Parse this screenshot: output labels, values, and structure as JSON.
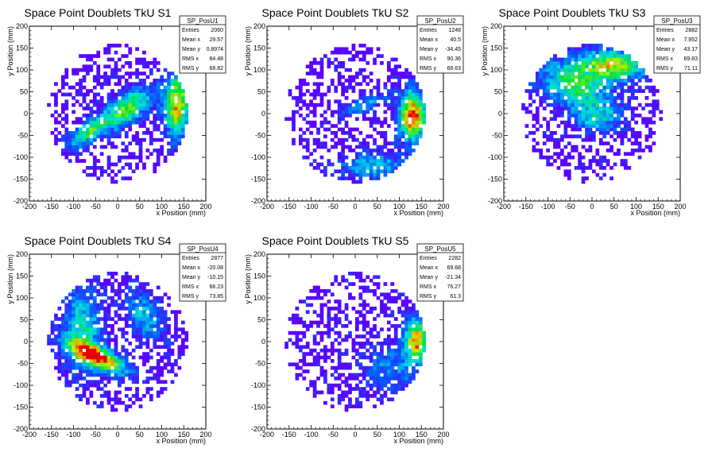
{
  "chart_data": [
    {
      "type": "heatmap",
      "title": "Space Point Doublets TkU S1",
      "xlabel": "x Position (mm)",
      "ylabel": "y Position (mm)",
      "xlim": [
        -200,
        200
      ],
      "ylim": [
        -200,
        200
      ],
      "xticks": [
        "-200",
        "-150",
        "-100",
        "-50",
        "0",
        "50",
        "100",
        "150",
        "200"
      ],
      "yticks": [
        "200",
        "150",
        "100",
        "50",
        "0",
        "-50",
        "-100",
        "-150",
        "-200"
      ],
      "stats": {
        "name": "SP_PosU1",
        "rows": [
          [
            "Entries",
            "2060"
          ],
          [
            "Mean x",
            "29.57"
          ],
          [
            "Mean y",
            "0.8974"
          ],
          [
            "RMS x",
            "84.48"
          ],
          [
            "RMS y",
            "68.82"
          ]
        ]
      },
      "hotspots": [
        {
          "x": 20,
          "y": 10,
          "sx": 50,
          "sy": 22,
          "angle": 35,
          "amp": 3.0
        },
        {
          "x": 135,
          "y": 20,
          "sx": 20,
          "sy": 50,
          "angle": 0,
          "amp": 4.0
        },
        {
          "x": -70,
          "y": -45,
          "sx": 35,
          "sy": 15,
          "angle": 35,
          "amp": 2.5
        }
      ]
    },
    {
      "type": "heatmap",
      "title": "Space Point Doublets TkU S2",
      "xlabel": "x Position (mm)",
      "ylabel": "y Position (mm)",
      "xlim": [
        -200,
        200
      ],
      "ylim": [
        -200,
        200
      ],
      "xticks": [
        "-200",
        "-150",
        "-100",
        "-50",
        "0",
        "50",
        "100",
        "150",
        "200"
      ],
      "yticks": [
        "200",
        "150",
        "100",
        "50",
        "0",
        "-50",
        "-100",
        "-150",
        "-200"
      ],
      "stats": {
        "name": "SP_PosU2",
        "rows": [
          [
            "Entries",
            "1248"
          ],
          [
            "Mean x",
            "40.5"
          ],
          [
            "Mean y",
            "-34.45"
          ],
          [
            "RMS x",
            "90.36"
          ],
          [
            "RMS y",
            "68.63"
          ]
        ]
      },
      "hotspots": [
        {
          "x": 130,
          "y": -5,
          "sx": 22,
          "sy": 40,
          "angle": 0,
          "amp": 4.5
        },
        {
          "x": 40,
          "y": -120,
          "sx": 50,
          "sy": 20,
          "angle": 0,
          "amp": 2.0
        },
        {
          "x": 20,
          "y": 20,
          "sx": 40,
          "sy": 12,
          "angle": 25,
          "amp": 1.5
        }
      ]
    },
    {
      "type": "heatmap",
      "title": "Space Point Doublets TkU S3",
      "xlabel": "x Position (mm)",
      "ylabel": "y Position (mm)",
      "xlim": [
        -200,
        200
      ],
      "ylim": [
        -200,
        200
      ],
      "xticks": [
        "-200",
        "-150",
        "-100",
        "-50",
        "0",
        "50",
        "100",
        "150",
        "200"
      ],
      "yticks": [
        "200",
        "150",
        "100",
        "50",
        "0",
        "-50",
        "-100",
        "-150",
        "-200"
      ],
      "stats": {
        "name": "SP_PosU3",
        "rows": [
          [
            "Entries",
            "2882"
          ],
          [
            "Mean x",
            "7.952"
          ],
          [
            "Mean y",
            "43.17"
          ],
          [
            "RMS x",
            "69.83"
          ],
          [
            "RMS y",
            "71.11"
          ]
        ]
      },
      "hotspots": [
        {
          "x": 40,
          "y": 110,
          "sx": 60,
          "sy": 25,
          "angle": 0,
          "amp": 3.5
        },
        {
          "x": -40,
          "y": 60,
          "sx": 60,
          "sy": 30,
          "angle": -20,
          "amp": 2.5
        },
        {
          "x": 10,
          "y": -10,
          "sx": 40,
          "sy": 25,
          "angle": 0,
          "amp": 1.8
        }
      ]
    },
    {
      "type": "heatmap",
      "title": "Space Point Doublets TkU S4",
      "xlabel": "x Position (mm)",
      "ylabel": "y Position (mm)",
      "xlim": [
        -200,
        200
      ],
      "ylim": [
        -200,
        200
      ],
      "xticks": [
        "-200",
        "-150",
        "-100",
        "-50",
        "0",
        "50",
        "100",
        "150",
        "200"
      ],
      "yticks": [
        "200",
        "150",
        "100",
        "50",
        "0",
        "-50",
        "-100",
        "-150",
        "-200"
      ],
      "stats": {
        "name": "SP_PosU4",
        "rows": [
          [
            "Entries",
            "2877"
          ],
          [
            "Mean x",
            "-20.08"
          ],
          [
            "Mean y",
            "-10.15"
          ],
          [
            "RMS x",
            "66.23"
          ],
          [
            "RMS y",
            "73.85"
          ]
        ]
      },
      "hotspots": [
        {
          "x": -45,
          "y": -35,
          "sx": 50,
          "sy": 16,
          "angle": -25,
          "amp": 4.5
        },
        {
          "x": -80,
          "y": 30,
          "sx": 30,
          "sy": 70,
          "angle": 0,
          "amp": 2.2
        },
        {
          "x": 60,
          "y": 60,
          "sx": 25,
          "sy": 45,
          "angle": 30,
          "amp": 1.8
        }
      ]
    },
    {
      "type": "heatmap",
      "title": "Space Point Doublets TkU S5",
      "xlabel": "x Position (mm)",
      "ylabel": "y Position (mm)",
      "xlim": [
        -200,
        200
      ],
      "ylim": [
        -200,
        200
      ],
      "xticks": [
        "-200",
        "-150",
        "-100",
        "-50",
        "0",
        "50",
        "100",
        "150",
        "200"
      ],
      "yticks": [
        "200",
        "150",
        "100",
        "50",
        "0",
        "-50",
        "-100",
        "-150",
        "-200"
      ],
      "stats": {
        "name": "SP_PosU5",
        "rows": [
          [
            "Entries",
            "2282"
          ],
          [
            "Mean x",
            "69.68"
          ],
          [
            "Mean y",
            "-21.34"
          ],
          [
            "RMS x",
            "76.27"
          ],
          [
            "RMS y",
            "61.3"
          ]
        ]
      },
      "hotspots": [
        {
          "x": 140,
          "y": 5,
          "sx": 18,
          "sy": 35,
          "angle": 0,
          "amp": 4.0
        },
        {
          "x": 80,
          "y": -60,
          "sx": 50,
          "sy": 40,
          "angle": 0,
          "amp": 1.3
        }
      ]
    }
  ]
}
